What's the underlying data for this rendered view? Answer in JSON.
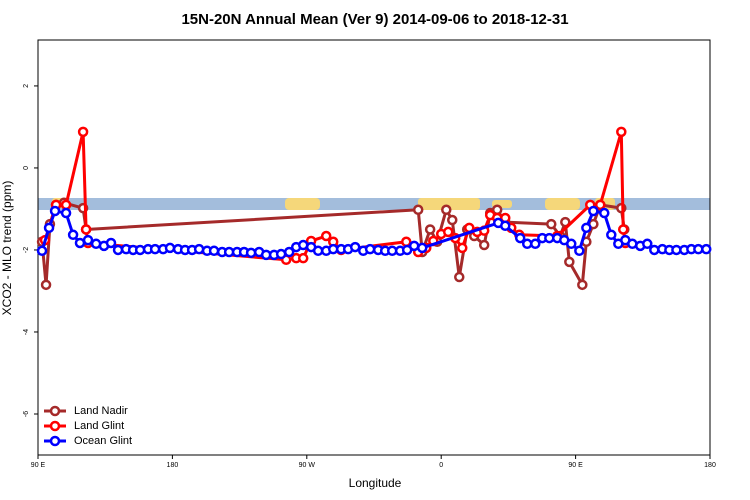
{
  "chart_data": {
    "type": "line",
    "title": "15N-20N Annual Mean (Ver 9)   2014-09-06 to 2018-12-31",
    "x_label": "Longitude",
    "y_label": "XCO2 - MLO trend (ppm)",
    "xlim": [
      90,
      540
    ],
    "ylim": [
      -7,
      3.12
    ],
    "xticks": [
      {
        "value": 90,
        "label": "90 E"
      },
      180,
      {
        "value": 270,
        "label": "90 W"
      },
      {
        "value": 360,
        "label": "0"
      },
      {
        "value": 450,
        "label": "90 E"
      },
      {
        "value": 540,
        "label": "180"
      }
    ],
    "yticks": [
      -6,
      -4,
      -2,
      0,
      2
    ],
    "legend_position": "bottom-left",
    "series": [
      {
        "name": "Land Nadir",
        "color": "#a52a2a",
        "x": [
          92.7,
          95.4,
          98,
          102.1,
          107.4,
          120.2,
          122.2,
          344.6,
          347.3,
          352.6,
          357.3,
          363.4,
          367.4,
          372.1,
          377.4,
          382.1,
          388.8,
          392.8,
          397.5,
          402.9,
          433.7,
          439.7,
          443.1,
          445.8,
          454.5,
          457.2,
          461.9,
          466.5,
          480.6,
          482.6
        ],
        "values": [
          -1.8,
          -2.85,
          -1.37,
          -0.9,
          -0.85,
          -0.98,
          -1.5,
          -1.02,
          -2.05,
          -1.5,
          -1.8,
          -1.02,
          -1.27,
          -2.66,
          -1.5,
          -1.66,
          -1.88,
          -1.1,
          -1.02,
          -1.32,
          -1.37,
          -1.66,
          -1.32,
          -2.29,
          -2.85,
          -1.8,
          -1.37,
          -0.9,
          -0.98,
          -1.5
        ]
      },
      {
        "name": "Land Glint",
        "color": "#ff0000",
        "x": [
          94.7,
          102.1,
          108.8,
          120.2,
          122.2,
          123.5,
          256.2,
          262.9,
          267.6,
          272.9,
          283,
          287.7,
          293,
          336.6,
          344.6,
          350,
          354.7,
          360,
          364.7,
          369.4,
          374.1,
          378.8,
          384.1,
          388.8,
          392.8,
          397.5,
          402.9,
          406.9,
          412.3,
          437.7,
          459.8,
          466.5,
          480.6,
          481.9,
          483.3
        ],
        "values": [
          -1.76,
          -0.9,
          -0.9,
          0.88,
          -1.5,
          -1.83,
          -2.24,
          -2.2,
          -2.2,
          -1.78,
          -1.66,
          -1.8,
          -2.0,
          -1.8,
          -2.05,
          -1.95,
          -1.78,
          -1.61,
          -1.56,
          -1.71,
          -1.95,
          -1.46,
          -1.56,
          -1.53,
          -1.15,
          -1.22,
          -1.22,
          -1.46,
          -1.63,
          -1.66,
          -0.9,
          -0.9,
          0.88,
          -1.5,
          -1.83
        ]
      },
      {
        "name": "Ocean Glint",
        "color": "#0000ff",
        "x": [
          92.7,
          97.4,
          101.4,
          108.8,
          113.5,
          118.1,
          123.5,
          128.9,
          134.2,
          138.9,
          143.6,
          149,
          153.7,
          158.4,
          163.7,
          168.4,
          173.8,
          178.4,
          183.8,
          188.5,
          193.2,
          197.9,
          203.2,
          207.9,
          213.3,
          218,
          223.3,
          228,
          232.7,
          238.1,
          242.8,
          248.1,
          252.8,
          258.2,
          262.9,
          267.6,
          272.9,
          277.6,
          283,
          287.7,
          293,
          297.7,
          302.4,
          307.8,
          312.4,
          317.8,
          322.5,
          327.2,
          332.5,
          337.2,
          341.9,
          347.3,
          398.2,
          402.9,
          412.9,
          417.6,
          423,
          427.7,
          432.4,
          437.7,
          442.4,
          447.1,
          452.5,
          457.2,
          461.9,
          469.2,
          473.9,
          478.6,
          483.3,
          488,
          493.3,
          498,
          502.7,
          508.1,
          512.8,
          517.5,
          522.8,
          527.5,
          532.2,
          537.5
        ],
        "values": [
          -2.02,
          -1.46,
          -1.05,
          -1.1,
          -1.63,
          -1.83,
          -1.76,
          -1.85,
          -1.9,
          -1.83,
          -2.0,
          -1.98,
          -2.0,
          -2.0,
          -1.98,
          -1.98,
          -1.98,
          -1.95,
          -1.98,
          -2.0,
          -2.0,
          -1.98,
          -2.02,
          -2.02,
          -2.05,
          -2.05,
          -2.05,
          -2.05,
          -2.07,
          -2.05,
          -2.12,
          -2.12,
          -2.1,
          -2.05,
          -1.93,
          -1.88,
          -1.93,
          -2.02,
          -2.02,
          -1.98,
          -1.98,
          -1.98,
          -1.93,
          -2.02,
          -1.98,
          -2.0,
          -2.02,
          -2.02,
          -2.02,
          -2.0,
          -1.9,
          -1.95,
          -1.34,
          -1.41,
          -1.71,
          -1.85,
          -1.85,
          -1.71,
          -1.71,
          -1.71,
          -1.76,
          -1.85,
          -2.02,
          -1.46,
          -1.05,
          -1.1,
          -1.63,
          -1.85,
          -1.76,
          -1.85,
          -1.9,
          -1.85,
          -2.0,
          -1.98,
          -2.0,
          -2.0,
          -2.0,
          -1.98,
          -1.98,
          -1.98
        ]
      }
    ]
  }
}
